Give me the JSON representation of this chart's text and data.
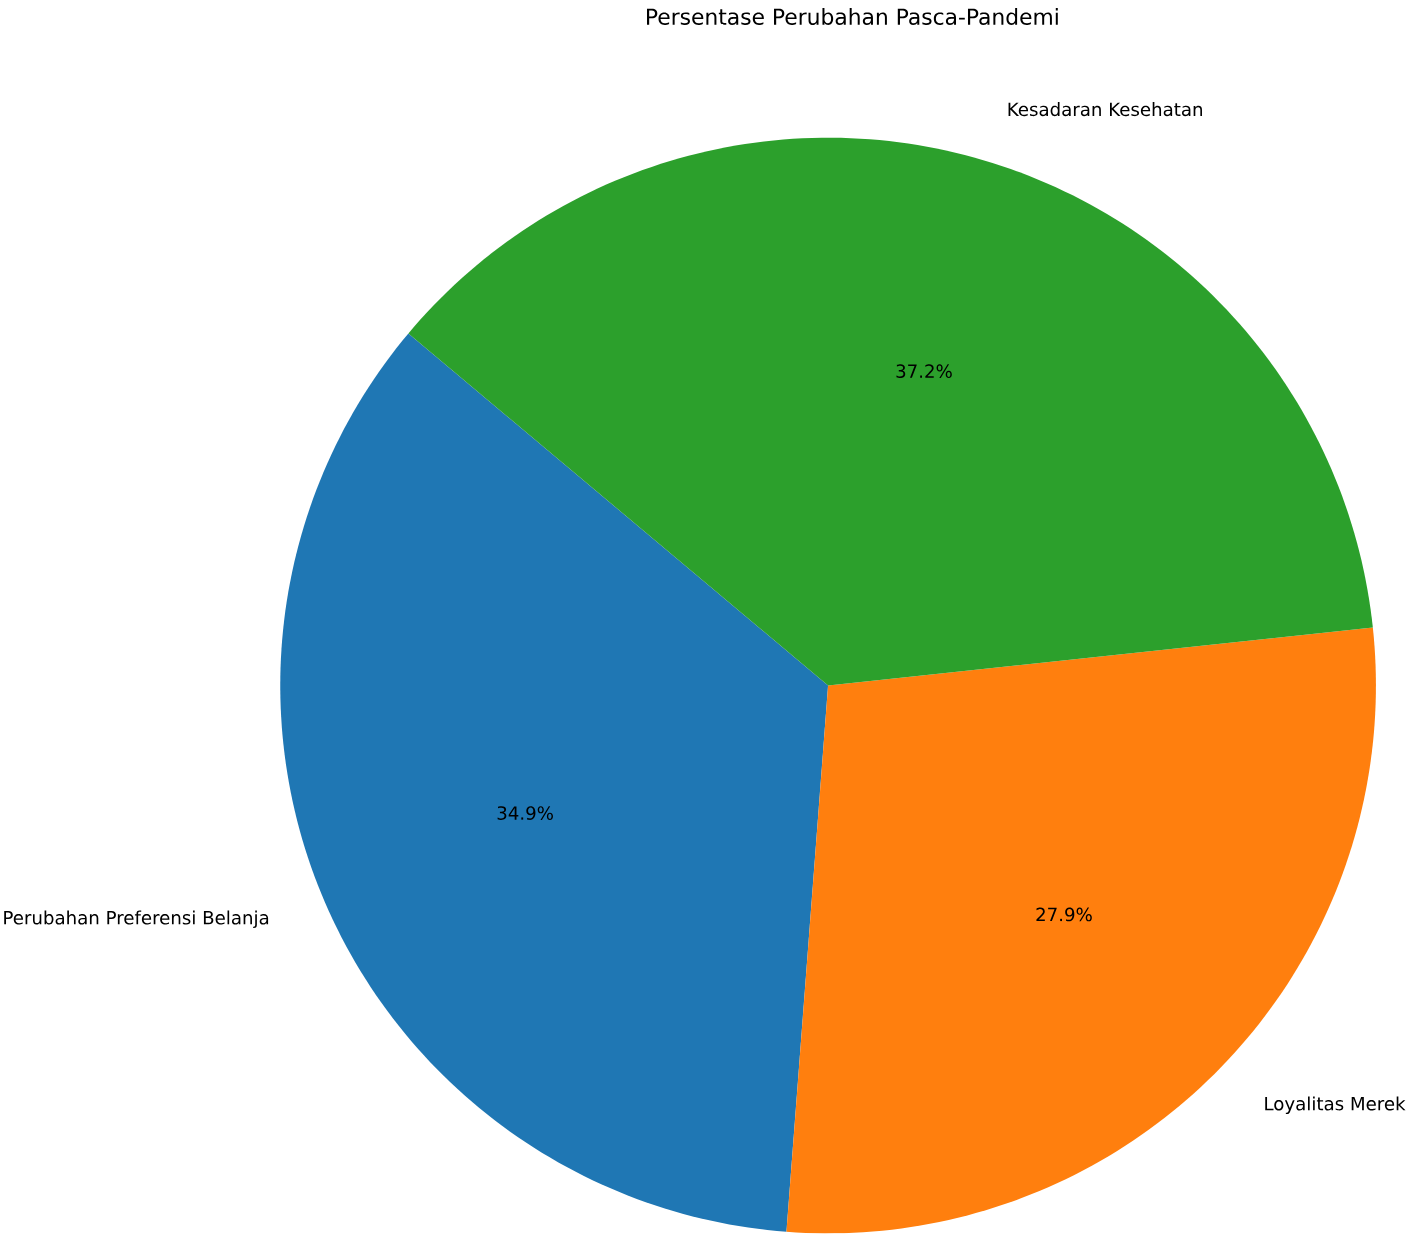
{
  "chart_data": {
    "type": "pie",
    "title": "Persentase Perubahan Pasca-Pandemi",
    "categories": [
      "Perubahan Preferensi Belanja",
      "Loyalitas Merek",
      "Kesadaran Kesehatan"
    ],
    "values": [
      34.9,
      27.9,
      37.2
    ],
    "value_labels": [
      "34.9%",
      "27.9%",
      "37.2%"
    ],
    "colors": [
      "#1f77b4",
      "#ff7f0e",
      "#2ca02c"
    ]
  }
}
